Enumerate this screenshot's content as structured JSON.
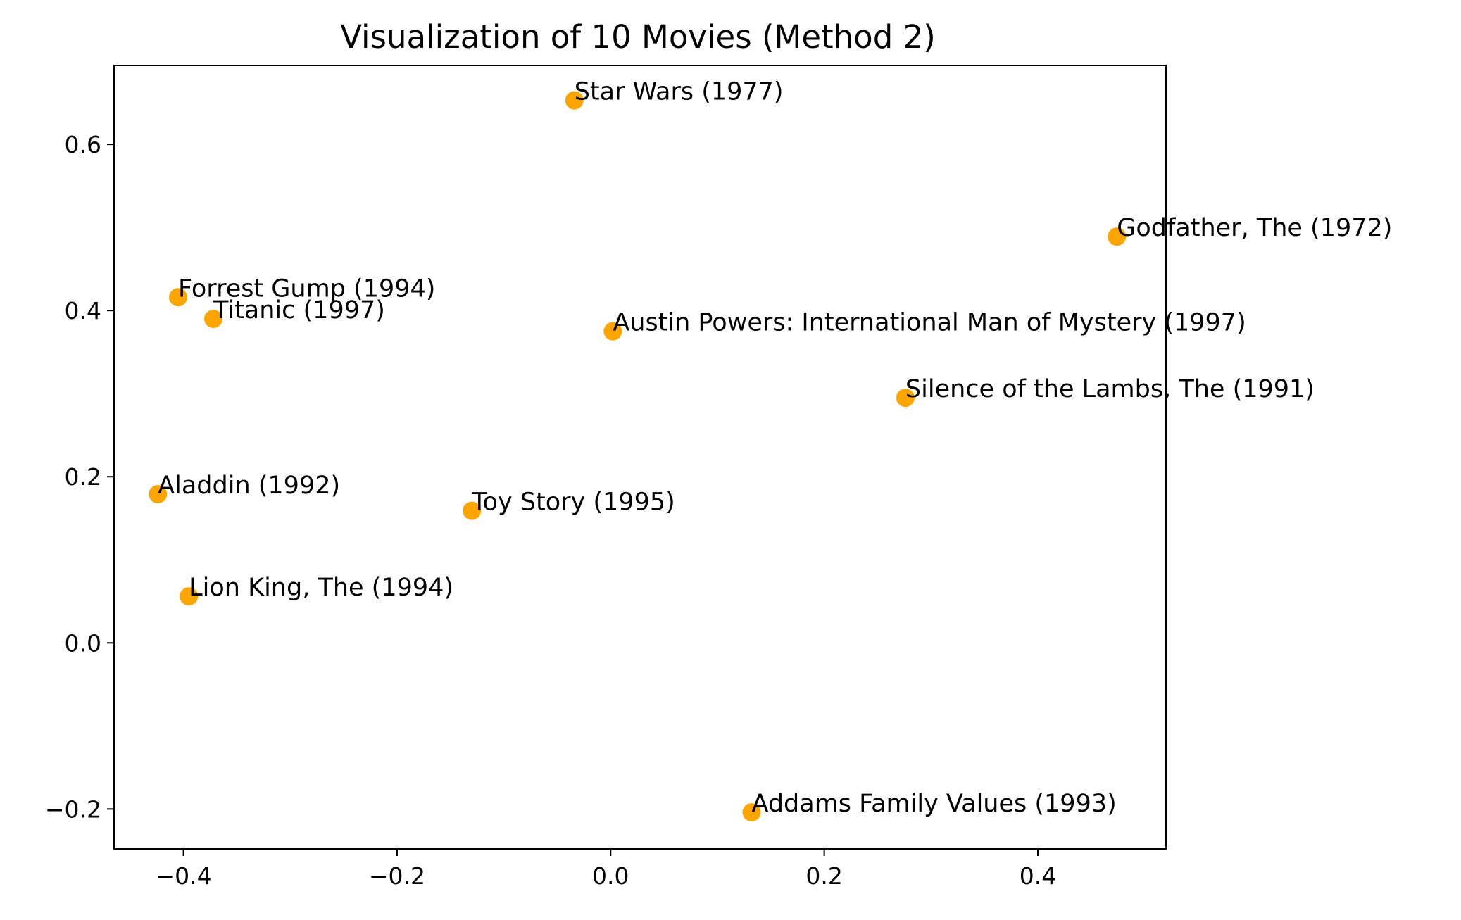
{
  "chart_data": {
    "type": "scatter",
    "title": "Visualization of 10 Movies (Method 2)",
    "xlabel": "",
    "ylabel": "",
    "xlim": [
      -0.465,
      0.52
    ],
    "ylim": [
      -0.248,
      0.695
    ],
    "xticks": [
      -0.4,
      -0.2,
      0.0,
      0.2,
      0.4
    ],
    "xtick_labels": [
      "−0.4",
      "−0.2",
      "0.0",
      "0.2",
      "0.4"
    ],
    "yticks": [
      -0.2,
      0.0,
      0.2,
      0.4,
      0.6
    ],
    "ytick_labels": [
      "−0.2",
      "0.0",
      "0.2",
      "0.4",
      "0.6"
    ],
    "grid": false,
    "marker_color": "#ffa500",
    "points": [
      {
        "label": "Star Wars (1977)",
        "x": -0.034,
        "y": 0.653
      },
      {
        "label": "Godfather, The (1972)",
        "x": 0.474,
        "y": 0.489
      },
      {
        "label": "Forrest Gump (1994)",
        "x": -0.405,
        "y": 0.416
      },
      {
        "label": "Titanic (1997)",
        "x": -0.372,
        "y": 0.39
      },
      {
        "label": "Austin Powers: International Man of Mystery (1997)",
        "x": 0.002,
        "y": 0.375
      },
      {
        "label": "Silence of the Lambs, The (1991)",
        "x": 0.276,
        "y": 0.295
      },
      {
        "label": "Aladdin (1992)",
        "x": -0.424,
        "y": 0.179
      },
      {
        "label": "Toy Story (1995)",
        "x": -0.13,
        "y": 0.159
      },
      {
        "label": "Lion King, The (1994)",
        "x": -0.395,
        "y": 0.056
      },
      {
        "label": "Addams Family Values (1993)",
        "x": 0.132,
        "y": -0.204
      }
    ]
  }
}
